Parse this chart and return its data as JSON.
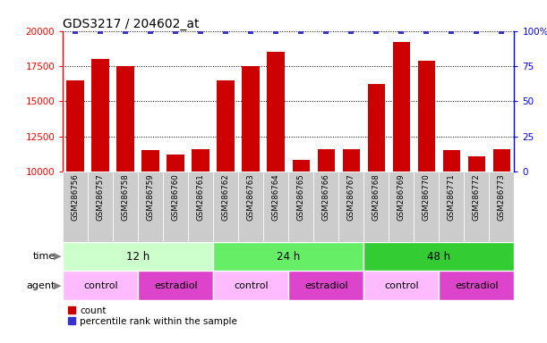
{
  "title": "GDS3217 / 204602_at",
  "samples": [
    "GSM286756",
    "GSM286757",
    "GSM286758",
    "GSM286759",
    "GSM286760",
    "GSM286761",
    "GSM286762",
    "GSM286763",
    "GSM286764",
    "GSM286765",
    "GSM286766",
    "GSM286767",
    "GSM286768",
    "GSM286769",
    "GSM286770",
    "GSM286771",
    "GSM286772",
    "GSM286773"
  ],
  "counts": [
    16500,
    18000,
    17500,
    11500,
    11200,
    11600,
    16500,
    17500,
    18500,
    10800,
    11600,
    11600,
    16200,
    19200,
    17900,
    11500,
    11100,
    11600
  ],
  "percentile_rank": [
    100,
    100,
    100,
    100,
    100,
    100,
    100,
    100,
    100,
    100,
    100,
    100,
    100,
    100,
    100,
    100,
    100,
    100
  ],
  "bar_color": "#cc0000",
  "dot_color": "#3333cc",
  "ylim_left": [
    10000,
    20000
  ],
  "ylim_right": [
    0,
    100
  ],
  "yticks_left": [
    10000,
    12500,
    15000,
    17500,
    20000
  ],
  "yticks_right": [
    0,
    25,
    50,
    75,
    100
  ],
  "time_groups": [
    {
      "label": "12 h",
      "start": 0,
      "end": 6,
      "color": "#ccffcc"
    },
    {
      "label": "24 h",
      "start": 6,
      "end": 12,
      "color": "#66ee66"
    },
    {
      "label": "48 h",
      "start": 12,
      "end": 18,
      "color": "#33cc33"
    }
  ],
  "agent_groups": [
    {
      "label": "control",
      "start": 0,
      "end": 3,
      "color": "#ffbbff"
    },
    {
      "label": "estradiol",
      "start": 3,
      "end": 6,
      "color": "#dd44cc"
    },
    {
      "label": "control",
      "start": 6,
      "end": 9,
      "color": "#ffbbff"
    },
    {
      "label": "estradiol",
      "start": 9,
      "end": 12,
      "color": "#dd44cc"
    },
    {
      "label": "control",
      "start": 12,
      "end": 15,
      "color": "#ffbbff"
    },
    {
      "label": "estradiol",
      "start": 15,
      "end": 18,
      "color": "#dd44cc"
    }
  ],
  "xtick_bg_color": "#cccccc",
  "legend_count_label": "count",
  "legend_pct_label": "percentile rank within the sample",
  "time_label": "time",
  "agent_label": "agent",
  "fig_bg": "#ffffff"
}
